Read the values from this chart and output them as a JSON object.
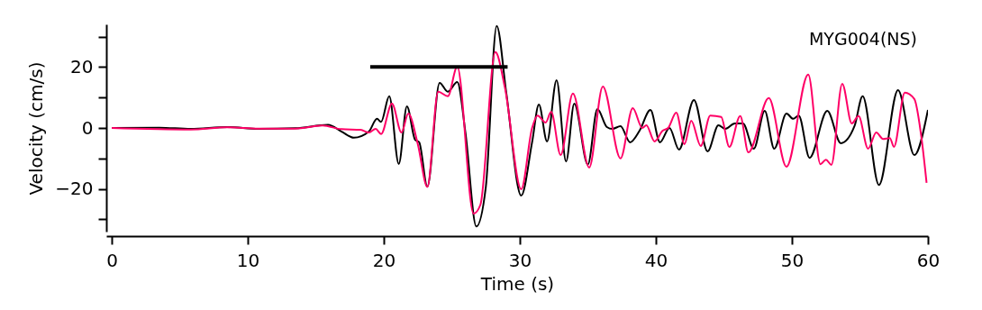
{
  "chart_data": {
    "type": "line",
    "xlabel": "Time (s)",
    "ylabel": "Velocity (cm/s)",
    "annotations": [
      "MYG004(NS)"
    ],
    "xlim": [
      -0.4,
      60
    ],
    "xticks": [
      0,
      10,
      20,
      30,
      40,
      50,
      60
    ],
    "ylim": [
      -34,
      34
    ],
    "yticks": [
      {
        "value": -30,
        "label": null
      },
      -20,
      {
        "value": -10,
        "label": null
      },
      0,
      {
        "value": 10,
        "label": null
      },
      20,
      {
        "value": 30,
        "label": null
      }
    ],
    "grid": false,
    "marker": "none",
    "line_style": "solid",
    "series": [
      {
        "color": "#000000",
        "x": [
          0,
          3.5,
          5.8,
          8.5,
          10.8,
          13.5,
          15.9,
          16.9,
          17.8,
          18.9,
          19.5,
          19.8,
          20.4,
          21.1,
          21.7,
          22.3,
          22.6,
          23.2,
          24.1,
          24.7,
          25.4,
          26.0,
          26.8,
          27.5,
          28.3,
          29.0,
          30.1,
          30.9,
          31.4,
          32.0,
          32.7,
          33.4,
          34.0,
          35.0,
          35.7,
          36.4,
          36.8,
          37.4,
          38.1,
          38.8,
          39.6,
          40.3,
          41.0,
          41.7,
          42.8,
          43.8,
          44.6,
          45.1,
          45.8,
          46.4,
          47.2,
          48.0,
          48.7,
          49.6,
          50.1,
          50.5,
          51.3,
          52.6,
          53.6,
          54.6,
          55.2,
          56.4,
          57.8,
          59.0,
          60
        ],
        "values": [
          0,
          0.1,
          -0.3,
          0.3,
          -0.3,
          -0.1,
          1.0,
          -1.2,
          -3.2,
          -1.2,
          3,
          2,
          10.4,
          -11.8,
          7.1,
          -3.9,
          -4.7,
          -19.3,
          14.8,
          11.9,
          15.1,
          -1.5,
          -32.3,
          -19.3,
          33.5,
          11.6,
          -22.2,
          -4.7,
          7.7,
          -4.4,
          15.7,
          -11,
          8,
          -12,
          6.2,
          0.3,
          -0.3,
          0.6,
          -4.7,
          -0.9,
          5.9,
          -4.7,
          0,
          -7.1,
          9.2,
          -7.7,
          0.9,
          -0.3,
          1.5,
          1.5,
          -6.8,
          5.6,
          -6.8,
          4.7,
          3,
          4.1,
          -9.8,
          5.6,
          -5,
          0.6,
          10.4,
          -18.7,
          12.4,
          -8.9,
          5.9
        ]
      },
      {
        "color": "#ff0066",
        "x": [
          0,
          5.8,
          8.5,
          10.8,
          13.5,
          15.5,
          16.9,
          18.3,
          18.9,
          19.4,
          19.8,
          20.6,
          21.3,
          21.8,
          22.5,
          23.2,
          24.0,
          24.7,
          25.4,
          26.6,
          27.1,
          28.2,
          28.9,
          30.1,
          30.9,
          31.3,
          31.9,
          32.3,
          33.0,
          33.9,
          35.1,
          36.1,
          37.4,
          38.3,
          39.0,
          39.3,
          39.9,
          40.5,
          40.9,
          41.5,
          42.1,
          42.6,
          43.3,
          44.0,
          44.8,
          45.4,
          46.2,
          46.8,
          48.3,
          49.6,
          51.2,
          52.1,
          52.5,
          52.9,
          53.7,
          54.4,
          54.9,
          55.6,
          56.2,
          56.7,
          57.2,
          57.5,
          58.3,
          59.0,
          59.5,
          59.9
        ],
        "values": [
          0,
          -0.5,
          0.2,
          -0.2,
          -0.2,
          0.8,
          -0.4,
          -0.6,
          -1.5,
          -0.3,
          -2,
          8,
          -1.5,
          4.7,
          -5.3,
          -19.3,
          11.9,
          10.4,
          20.1,
          -28.1,
          -25.2,
          24.9,
          13.3,
          -20.1,
          0,
          4.1,
          1.8,
          5.3,
          -8.9,
          11.3,
          -13,
          13.6,
          -10,
          6.5,
          0,
          0.9,
          -4.4,
          -0.9,
          0,
          5,
          -5.3,
          2.4,
          -5.9,
          4.1,
          3.6,
          -6.2,
          3.9,
          -8,
          9.8,
          -12.7,
          17.5,
          -11.9,
          -10.4,
          -12.1,
          14.5,
          1.5,
          3.9,
          -6.8,
          -1.5,
          -3.6,
          -3.3,
          -6.2,
          11.6,
          9.5,
          -2.4,
          -18
        ]
      },
      {
        "color": "#000000",
        "x": [
          19.0,
          29.1
        ],
        "values": [
          20,
          20
        ]
      }
    ]
  }
}
